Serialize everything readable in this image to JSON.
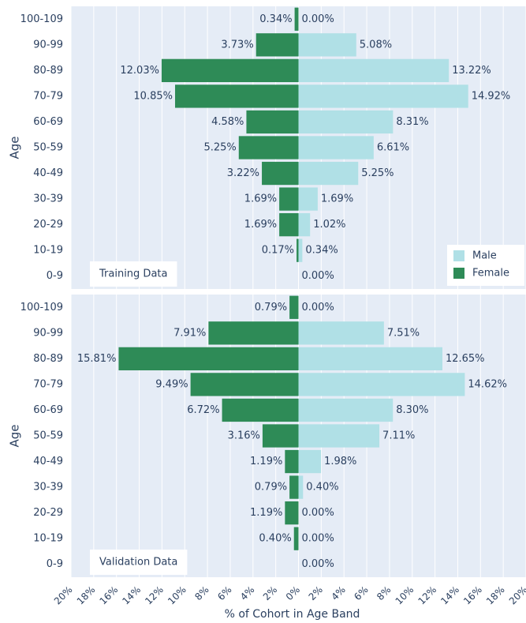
{
  "chart_data": [
    {
      "type": "pyramid",
      "categories": [
        "100-109",
        "90-99",
        "80-89",
        "70-79",
        "60-69",
        "50-59",
        "40-49",
        "30-39",
        "20-29",
        "10-19",
        "0-9"
      ],
      "series": [
        {
          "name": "Male",
          "color": "#b0e0e6",
          "values": [
            0.0,
            5.08,
            13.22,
            14.92,
            8.31,
            6.61,
            5.25,
            1.69,
            1.02,
            0.34,
            0.0
          ],
          "value_labels": [
            "0.00%",
            "5.08%",
            "13.22%",
            "14.92%",
            "8.31%",
            "6.61%",
            "5.25%",
            "1.69%",
            "1.02%",
            "0.34%",
            "0.00%"
          ]
        },
        {
          "name": "Female",
          "color": "#2e8b57",
          "values": [
            -0.34,
            -3.73,
            -12.03,
            -10.85,
            -4.58,
            -5.25,
            -3.22,
            -1.69,
            -1.69,
            -0.17,
            null
          ],
          "value_labels": [
            "0.34%",
            "3.73%",
            "12.03%",
            "10.85%",
            "4.58%",
            "5.25%",
            "3.22%",
            "1.69%",
            "1.69%",
            "0.17%",
            null
          ]
        }
      ],
      "y_label": "Age",
      "annotation": "Training Data",
      "legend": "bottom-right",
      "xlim": [
        -20,
        20
      ],
      "xticks": [
        -20,
        -18,
        -16,
        -14,
        -12,
        -10,
        -8,
        -6,
        -4,
        -2,
        0,
        2,
        4,
        6,
        8,
        10,
        12,
        14,
        16,
        18,
        20
      ],
      "show_xtick_labels": false,
      "grid": true
    },
    {
      "type": "pyramid",
      "categories": [
        "100-109",
        "90-99",
        "80-89",
        "70-79",
        "60-69",
        "50-59",
        "40-49",
        "30-39",
        "20-29",
        "10-19",
        "0-9"
      ],
      "series": [
        {
          "color": "#b0e0e6",
          "values": [
            0.0,
            7.51,
            12.65,
            14.62,
            8.3,
            7.11,
            1.98,
            0.4,
            0.0,
            0.0,
            0.0
          ],
          "value_labels": [
            "0.00%",
            "7.51%",
            "12.65%",
            "14.62%",
            "8.30%",
            "7.11%",
            "1.98%",
            "0.40%",
            "0.00%",
            "0.00%",
            "0.00%"
          ]
        },
        {
          "color": "#2e8b57",
          "values": [
            -0.79,
            -7.91,
            -15.81,
            -9.49,
            -6.72,
            -3.16,
            -1.19,
            -0.79,
            -1.19,
            -0.4,
            null
          ],
          "value_labels": [
            "0.79%",
            "7.91%",
            "15.81%",
            "9.49%",
            "6.72%",
            "3.16%",
            "1.19%",
            "0.79%",
            "1.19%",
            "0.40%",
            null
          ]
        }
      ],
      "y_label": "Age",
      "x_label": "% of Cohort in Age Band",
      "annotation": "Validation Data",
      "xlim": [
        -20,
        20
      ],
      "xticks": [
        {
          "value": -20,
          "label": "20%"
        },
        {
          "value": -18,
          "label": "18%"
        },
        {
          "value": -16,
          "label": "16%"
        },
        {
          "value": -14,
          "label": "14%"
        },
        {
          "value": -12,
          "label": "12%"
        },
        {
          "value": -10,
          "label": "10%"
        },
        {
          "value": -8,
          "label": "8%"
        },
        {
          "value": -6,
          "label": "6%"
        },
        {
          "value": -4,
          "label": "4%"
        },
        {
          "value": -2,
          "label": "2%"
        },
        {
          "value": 0,
          "label": "0%"
        },
        {
          "value": 2,
          "label": "2%"
        },
        {
          "value": 4,
          "label": "4%"
        },
        {
          "value": 6,
          "label": "6%"
        },
        {
          "value": 8,
          "label": "8%"
        },
        {
          "value": 10,
          "label": "10%"
        },
        {
          "value": 12,
          "label": "12%"
        },
        {
          "value": 14,
          "label": "14%"
        },
        {
          "value": 16,
          "label": "16%"
        },
        {
          "value": 18,
          "label": "18%"
        },
        {
          "value": 20,
          "label": "20%"
        }
      ],
      "show_xtick_labels": true,
      "grid": true
    }
  ]
}
